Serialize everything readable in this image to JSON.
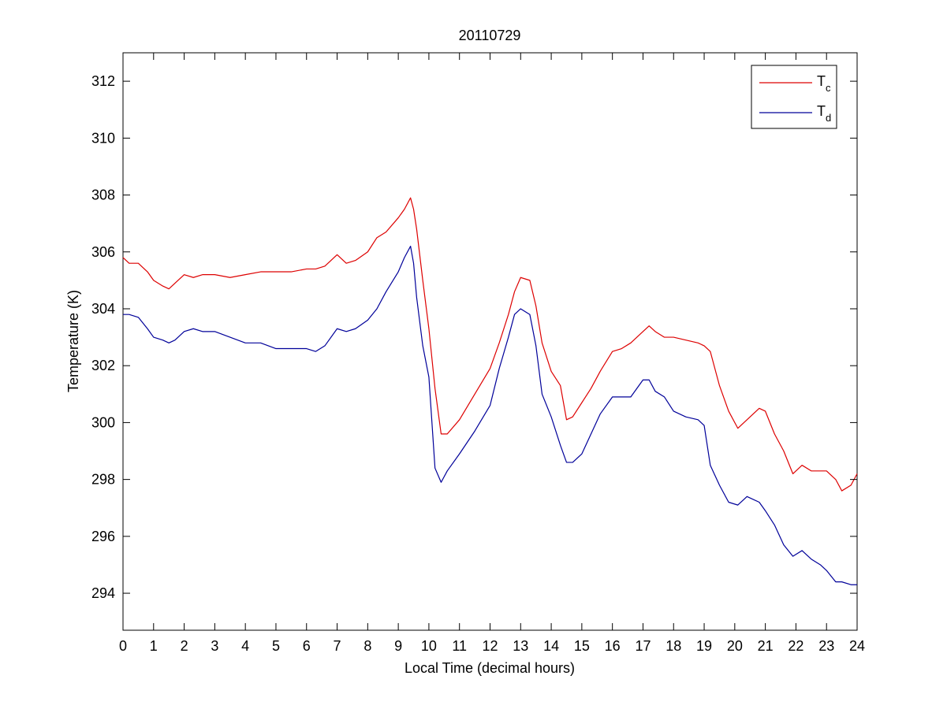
{
  "chart_data": {
    "type": "line",
    "title": "20110729",
    "xlabel": "Local Time (decimal hours)",
    "ylabel": "Temperature (K)",
    "xlim": [
      0,
      24
    ],
    "ylim": [
      292.7,
      313
    ],
    "xticks": [
      0,
      1,
      2,
      3,
      4,
      5,
      6,
      7,
      8,
      9,
      10,
      11,
      12,
      13,
      14,
      15,
      16,
      17,
      18,
      19,
      20,
      21,
      22,
      23,
      24
    ],
    "yticks": [
      294,
      296,
      298,
      300,
      302,
      304,
      306,
      308,
      310,
      312
    ],
    "grid": false,
    "legend": {
      "placement": "top-right",
      "entries": [
        {
          "base": "T",
          "sub": "c"
        },
        {
          "base": "T",
          "sub": "d"
        }
      ]
    },
    "series": [
      {
        "color": "#dd0000",
        "x": [
          0,
          0.2,
          0.5,
          0.8,
          1.0,
          1.3,
          1.5,
          1.7,
          2.0,
          2.3,
          2.6,
          3.0,
          3.5,
          4.0,
          4.5,
          5.0,
          5.5,
          6.0,
          6.3,
          6.6,
          7.0,
          7.3,
          7.6,
          8.0,
          8.3,
          8.6,
          9.0,
          9.2,
          9.4,
          9.5,
          9.6,
          9.8,
          10.0,
          10.2,
          10.4,
          10.6,
          11.0,
          11.5,
          12.0,
          12.3,
          12.6,
          12.8,
          13.0,
          13.3,
          13.5,
          13.7,
          14.0,
          14.3,
          14.5,
          14.7,
          15.0,
          15.3,
          15.6,
          16.0,
          16.3,
          16.6,
          17.0,
          17.2,
          17.4,
          17.7,
          18.0,
          18.4,
          18.8,
          19.0,
          19.2,
          19.5,
          19.8,
          20.1,
          20.4,
          20.8,
          21.0,
          21.3,
          21.6,
          21.9,
          22.2,
          22.5,
          22.8,
          23.0,
          23.3,
          23.5,
          23.8,
          24.0
        ],
        "values": [
          305.8,
          305.6,
          305.6,
          305.3,
          305.0,
          304.8,
          304.7,
          304.9,
          305.2,
          305.1,
          305.2,
          305.2,
          305.1,
          305.2,
          305.3,
          305.3,
          305.3,
          305.4,
          305.4,
          305.5,
          305.9,
          305.6,
          305.7,
          306.0,
          306.5,
          306.7,
          307.2,
          307.5,
          307.9,
          307.5,
          306.8,
          305.0,
          303.3,
          301.2,
          299.6,
          299.6,
          300.1,
          301.0,
          301.9,
          302.8,
          303.8,
          304.6,
          305.1,
          305.0,
          304.1,
          302.8,
          301.8,
          301.3,
          300.1,
          300.2,
          300.7,
          301.2,
          301.8,
          302.5,
          302.6,
          302.8,
          303.2,
          303.4,
          303.2,
          303.0,
          303.0,
          302.9,
          302.8,
          302.7,
          302.5,
          301.3,
          300.4,
          299.8,
          300.1,
          300.5,
          300.4,
          299.6,
          299.0,
          298.2,
          298.5,
          298.3,
          298.3,
          298.3,
          298.0,
          297.6,
          297.8,
          298.2
        ]
      },
      {
        "color": "#000099",
        "x": [
          0,
          0.2,
          0.5,
          0.8,
          1.0,
          1.3,
          1.5,
          1.7,
          2.0,
          2.3,
          2.6,
          3.0,
          3.5,
          4.0,
          4.5,
          5.0,
          5.5,
          6.0,
          6.3,
          6.6,
          7.0,
          7.3,
          7.6,
          8.0,
          8.3,
          8.6,
          9.0,
          9.2,
          9.4,
          9.5,
          9.6,
          9.8,
          10.0,
          10.2,
          10.4,
          10.6,
          11.0,
          11.5,
          12.0,
          12.3,
          12.6,
          12.8,
          13.0,
          13.3,
          13.5,
          13.7,
          14.0,
          14.3,
          14.5,
          14.7,
          15.0,
          15.3,
          15.6,
          16.0,
          16.3,
          16.6,
          17.0,
          17.2,
          17.4,
          17.7,
          18.0,
          18.4,
          18.8,
          19.0,
          19.2,
          19.5,
          19.8,
          20.1,
          20.4,
          20.8,
          21.0,
          21.3,
          21.6,
          21.9,
          22.2,
          22.5,
          22.8,
          23.0,
          23.3,
          23.5,
          23.8,
          24.0
        ],
        "values": [
          303.8,
          303.8,
          303.7,
          303.3,
          303.0,
          302.9,
          302.8,
          302.9,
          303.2,
          303.3,
          303.2,
          303.2,
          303.0,
          302.8,
          302.8,
          302.6,
          302.6,
          302.6,
          302.5,
          302.7,
          303.3,
          303.2,
          303.3,
          303.6,
          304.0,
          304.6,
          305.3,
          305.8,
          306.2,
          305.6,
          304.4,
          302.7,
          301.6,
          298.4,
          297.9,
          298.3,
          298.9,
          299.7,
          300.6,
          301.9,
          303.0,
          303.8,
          304.0,
          303.8,
          302.7,
          301.0,
          300.2,
          299.2,
          298.6,
          298.6,
          298.9,
          299.6,
          300.3,
          300.9,
          300.9,
          300.9,
          301.5,
          301.5,
          301.1,
          300.9,
          300.4,
          300.2,
          300.1,
          299.9,
          298.5,
          297.8,
          297.2,
          297.1,
          297.4,
          297.2,
          296.9,
          296.4,
          295.7,
          295.3,
          295.5,
          295.2,
          295.0,
          294.8,
          294.4,
          294.4,
          294.3,
          294.3
        ]
      }
    ]
  }
}
